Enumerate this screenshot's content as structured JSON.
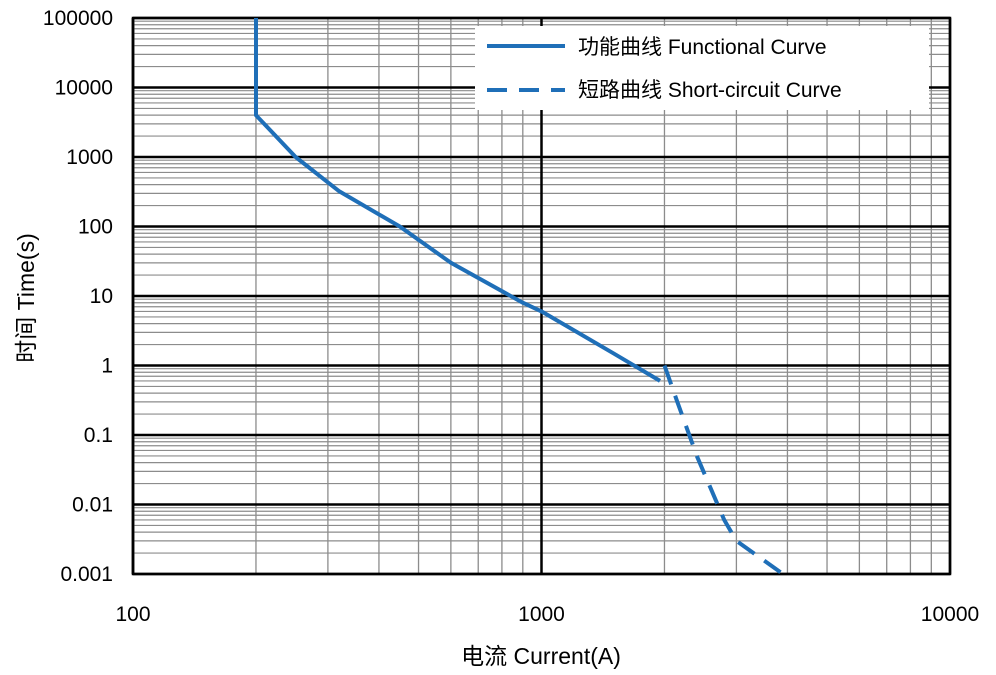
{
  "chart_data": {
    "type": "line",
    "xlabel": "电流 Current(A)",
    "ylabel": "时间 Time(s)",
    "x_scale": "log",
    "y_scale": "log",
    "xlim": [
      100,
      10000
    ],
    "ylim": [
      0.001,
      100000
    ],
    "x_ticks": [
      {
        "value": 100,
        "label": "100"
      },
      {
        "value": 1000,
        "label": "1000"
      },
      {
        "value": 10000,
        "label": "10000"
      }
    ],
    "y_ticks": [
      {
        "value": 100000,
        "label": "100000"
      },
      {
        "value": 10000,
        "label": "10000"
      },
      {
        "value": 1000,
        "label": "1000"
      },
      {
        "value": 100,
        "label": "100"
      },
      {
        "value": 10,
        "label": "10"
      },
      {
        "value": 1,
        "label": "1"
      },
      {
        "value": 0.1,
        "label": "0.1"
      },
      {
        "value": 0.01,
        "label": "0.01"
      },
      {
        "value": 0.001,
        "label": "0.001"
      }
    ],
    "grid": true,
    "legend_position": "top-right",
    "color": "#1f6fb8",
    "series": [
      {
        "name": "功能曲线 Functional Curve",
        "style": "solid",
        "points": [
          [
            200,
            100000
          ],
          [
            200,
            4000
          ],
          [
            250,
            1000
          ],
          [
            320,
            320
          ],
          [
            450,
            100
          ],
          [
            600,
            30
          ],
          [
            900,
            8
          ],
          [
            1000,
            6
          ],
          [
            1500,
            1.5
          ],
          [
            1950,
            0.6
          ]
        ]
      },
      {
        "name": "短路曲线 Short-circuit Curve",
        "style": "dashed",
        "points": [
          [
            2000,
            1
          ],
          [
            2150,
            0.3
          ],
          [
            2400,
            0.05
          ],
          [
            2800,
            0.006
          ],
          [
            3000,
            0.003
          ],
          [
            3900,
            0.001
          ]
        ]
      }
    ]
  }
}
